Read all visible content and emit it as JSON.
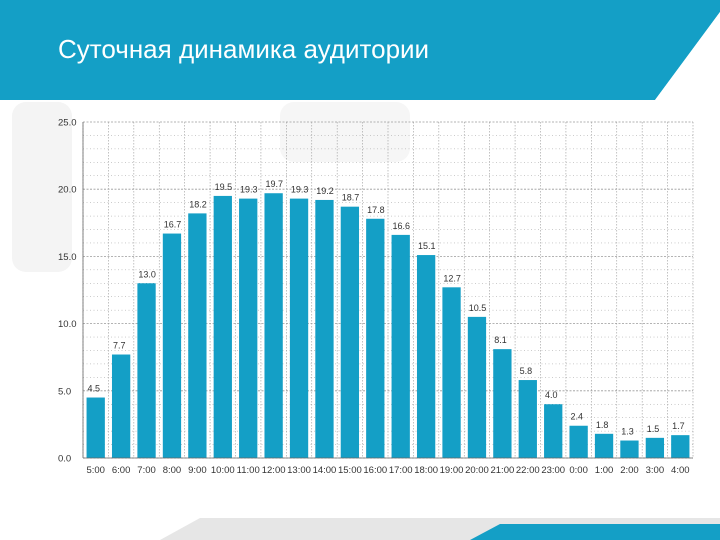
{
  "header": {
    "title": "Суточная динамика аудитории"
  },
  "colors": {
    "accent": "#149fc6",
    "header_band": "#149fc6",
    "bar": "#149fc6",
    "grid": "#9a9a9a",
    "text": "#333333",
    "footer_light": "#e6e6e6"
  },
  "chart_data": {
    "type": "bar",
    "title": "",
    "xlabel": "",
    "ylabel": "",
    "ylim": [
      0,
      25
    ],
    "yticks": [
      "0.0",
      "5.0",
      "10.0",
      "15.0",
      "20.0",
      "25.0"
    ],
    "grid": true,
    "legend": "none",
    "categories": [
      "5:00",
      "6:00",
      "7:00",
      "8:00",
      "9:00",
      "10:00",
      "11:00",
      "12:00",
      "13:00",
      "14:00",
      "15:00",
      "16:00",
      "17:00",
      "18:00",
      "19:00",
      "20:00",
      "21:00",
      "22:00",
      "23:00",
      "0:00",
      "1:00",
      "2:00",
      "3:00",
      "4:00"
    ],
    "values": [
      4.5,
      7.7,
      13.0,
      16.7,
      18.2,
      19.5,
      19.3,
      19.7,
      19.3,
      19.2,
      18.7,
      17.8,
      16.6,
      15.1,
      12.7,
      10.5,
      8.1,
      5.8,
      4.0,
      2.4,
      1.8,
      1.3,
      1.5,
      1.7
    ],
    "labels": [
      "4.5",
      "7.7",
      "13.0",
      "16.7",
      "18.2",
      "19.5",
      "19.3",
      "19.7",
      "19.3",
      "19.2",
      "18.7",
      "17.8",
      "16.6",
      "15.1",
      "12.7",
      "10.5",
      "8.1",
      "5.8",
      "4.0",
      "2.4",
      "1.8",
      "1.3",
      "1.5",
      "1.7"
    ]
  }
}
